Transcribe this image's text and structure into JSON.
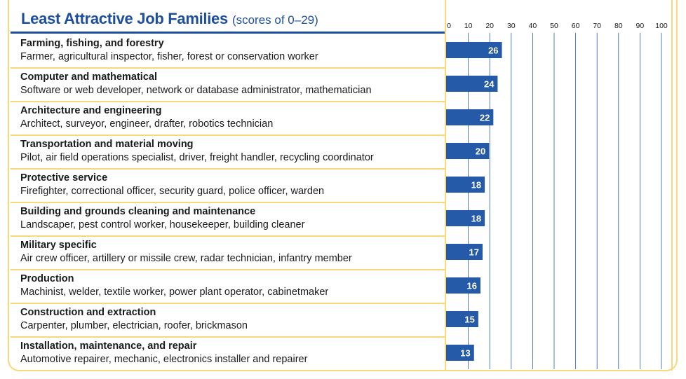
{
  "chart_data": {
    "type": "bar",
    "orientation": "horizontal",
    "title": "Least Attractive Job Families",
    "subtitle": "(scores of 0–29)",
    "xlim": [
      0,
      100
    ],
    "x_ticks": [
      "0",
      "10",
      "20",
      "30",
      "40",
      "50",
      "60",
      "70",
      "80",
      "90",
      "100"
    ],
    "grid": true,
    "categories": [
      "Farming, fishing, and forestry",
      "Computer and mathematical",
      "Architecture and engineering",
      "Transportation and material moving",
      "Protective service",
      "Building and grounds cleaning and maintenance",
      "Military specific",
      "Production",
      "Construction and extraction",
      "Installation, maintenance, and repair"
    ],
    "descriptions": [
      "Farmer, agricultural inspector, fisher, forest or conservation worker",
      "Software or web developer, network or database administrator, mathematician",
      "Architect, surveyor, engineer, drafter, robotics technician",
      "Pilot, air field operations specialist, driver, freight handler, recycling coordinator",
      "Firefighter, correctional officer, security guard, police officer, warden",
      "Landscaper, pest control worker, housekeeper, building cleaner",
      "Air crew officer, artillery or missile crew, radar technician, infantry member",
      "Machinist, welder, textile worker, power plant operator, cabinetmaker",
      "Carpenter, plumber, electrician, roofer, brickmason",
      "Automotive repairer, mechanic, electronics installer and repairer"
    ],
    "values": [
      26,
      24,
      22,
      20,
      18,
      18,
      17,
      16,
      15,
      13
    ],
    "value_labels": [
      "26",
      "24",
      "22",
      "20",
      "18",
      "18",
      "17",
      "16",
      "15",
      "13"
    ]
  },
  "colors": {
    "bar": "#245aa8",
    "title": "#1e4f9c",
    "grid_line": "#2a5aa6",
    "plot_border": "#f6d97a",
    "row_separator": "#f6d97a",
    "bar_label": "#ffffff"
  }
}
